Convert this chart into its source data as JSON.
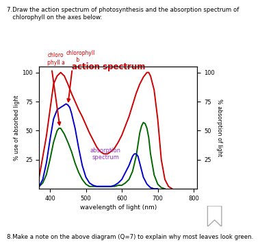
{
  "title_line1": "7.Draw the action spectrum of photosynthesis and the absorption spectrum of",
  "title_line2": "   chlorophyll on the axes below:",
  "xlabel": "wavelength of light (nm)",
  "ylabel_left": "% use of absorbed light",
  "ylabel_right": "% absorption of light",
  "xlim": [
    370,
    810
  ],
  "ylim": [
    0,
    105
  ],
  "yticks": [
    25,
    50,
    75,
    100
  ],
  "xticks": [
    400,
    500,
    600,
    700,
    800
  ],
  "bg_color": "#ffffff",
  "note": "8.Make a note on the above diagram (Q=7) to explain why most leaves look green.",
  "action_spectrum_color": "#cc0000",
  "chlorophyll_a_color": "#006600",
  "chlorophyll_b_color": "#0000cc",
  "label_color_chlorophyll": "#cc0000",
  "label_color_absorption": "#9933cc",
  "action_spectrum": {
    "x": [
      370,
      390,
      410,
      420,
      430,
      440,
      450,
      460,
      470,
      480,
      490,
      500,
      510,
      520,
      530,
      540,
      550,
      560,
      570,
      580,
      590,
      600,
      610,
      620,
      630,
      640,
      650,
      660,
      670,
      675,
      680,
      690,
      700,
      710,
      720,
      730,
      740
    ],
    "y": [
      10,
      45,
      90,
      97,
      100,
      97,
      90,
      82,
      75,
      68,
      62,
      55,
      48,
      42,
      36,
      32,
      30,
      30,
      32,
      35,
      40,
      46,
      54,
      62,
      72,
      82,
      90,
      96,
      100,
      100,
      97,
      85,
      60,
      25,
      8,
      2,
      0
    ]
  },
  "chlorophyll_a": {
    "x": [
      370,
      380,
      390,
      400,
      410,
      420,
      425,
      430,
      440,
      450,
      460,
      470,
      480,
      490,
      500,
      510,
      520,
      530,
      540,
      550,
      560,
      570,
      580,
      590,
      600,
      610,
      620,
      630,
      640,
      650,
      655,
      660,
      665,
      670,
      675,
      680,
      690,
      700,
      710,
      720
    ],
    "y": [
      2,
      5,
      12,
      25,
      40,
      50,
      52,
      52,
      47,
      40,
      32,
      22,
      14,
      8,
      4,
      2,
      2,
      2,
      2,
      2,
      2,
      2,
      2,
      3,
      3,
      5,
      8,
      15,
      28,
      48,
      54,
      57,
      56,
      52,
      44,
      30,
      12,
      4,
      1,
      0
    ]
  },
  "chlorophyll_b": {
    "x": [
      370,
      380,
      390,
      400,
      410,
      420,
      430,
      440,
      445,
      450,
      455,
      460,
      470,
      480,
      490,
      500,
      510,
      520,
      530,
      540,
      550,
      560,
      570,
      580,
      590,
      600,
      610,
      620,
      625,
      630,
      635,
      640,
      645,
      650,
      660,
      670,
      680,
      690,
      700
    ],
    "y": [
      2,
      8,
      22,
      42,
      60,
      68,
      70,
      72,
      73,
      72,
      70,
      65,
      52,
      35,
      20,
      10,
      5,
      3,
      2,
      2,
      2,
      2,
      2,
      3,
      5,
      8,
      14,
      20,
      24,
      28,
      30,
      30,
      28,
      22,
      10,
      4,
      1,
      0,
      0
    ]
  }
}
